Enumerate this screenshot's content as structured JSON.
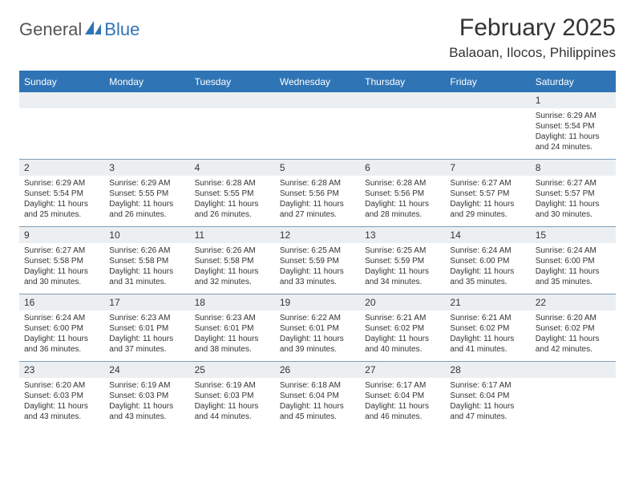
{
  "logo": {
    "text1": "General",
    "text2": "Blue",
    "icon_color": "#2f74b5"
  },
  "title": "February 2025",
  "location": "Balaoan, Ilocos, Philippines",
  "colors": {
    "header_bar": "#2f74b5",
    "header_text": "#ffffff",
    "daynum_bg": "#eceff1",
    "week_divider": "#7f9cb8",
    "body_text": "#333333",
    "background": "#ffffff"
  },
  "typography": {
    "title_fontsize": 30,
    "location_fontsize": 17,
    "dow_fontsize": 12,
    "daynum_fontsize": 12,
    "body_fontsize": 10
  },
  "day_names": [
    "Sunday",
    "Monday",
    "Tuesday",
    "Wednesday",
    "Thursday",
    "Friday",
    "Saturday"
  ],
  "weeks": [
    [
      null,
      null,
      null,
      null,
      null,
      null,
      {
        "n": "1",
        "sunrise": "6:29 AM",
        "sunset": "5:54 PM",
        "daylight": "11 hours and 24 minutes."
      }
    ],
    [
      {
        "n": "2",
        "sunrise": "6:29 AM",
        "sunset": "5:54 PM",
        "daylight": "11 hours and 25 minutes."
      },
      {
        "n": "3",
        "sunrise": "6:29 AM",
        "sunset": "5:55 PM",
        "daylight": "11 hours and 26 minutes."
      },
      {
        "n": "4",
        "sunrise": "6:28 AM",
        "sunset": "5:55 PM",
        "daylight": "11 hours and 26 minutes."
      },
      {
        "n": "5",
        "sunrise": "6:28 AM",
        "sunset": "5:56 PM",
        "daylight": "11 hours and 27 minutes."
      },
      {
        "n": "6",
        "sunrise": "6:28 AM",
        "sunset": "5:56 PM",
        "daylight": "11 hours and 28 minutes."
      },
      {
        "n": "7",
        "sunrise": "6:27 AM",
        "sunset": "5:57 PM",
        "daylight": "11 hours and 29 minutes."
      },
      {
        "n": "8",
        "sunrise": "6:27 AM",
        "sunset": "5:57 PM",
        "daylight": "11 hours and 30 minutes."
      }
    ],
    [
      {
        "n": "9",
        "sunrise": "6:27 AM",
        "sunset": "5:58 PM",
        "daylight": "11 hours and 30 minutes."
      },
      {
        "n": "10",
        "sunrise": "6:26 AM",
        "sunset": "5:58 PM",
        "daylight": "11 hours and 31 minutes."
      },
      {
        "n": "11",
        "sunrise": "6:26 AM",
        "sunset": "5:58 PM",
        "daylight": "11 hours and 32 minutes."
      },
      {
        "n": "12",
        "sunrise": "6:25 AM",
        "sunset": "5:59 PM",
        "daylight": "11 hours and 33 minutes."
      },
      {
        "n": "13",
        "sunrise": "6:25 AM",
        "sunset": "5:59 PM",
        "daylight": "11 hours and 34 minutes."
      },
      {
        "n": "14",
        "sunrise": "6:24 AM",
        "sunset": "6:00 PM",
        "daylight": "11 hours and 35 minutes."
      },
      {
        "n": "15",
        "sunrise": "6:24 AM",
        "sunset": "6:00 PM",
        "daylight": "11 hours and 35 minutes."
      }
    ],
    [
      {
        "n": "16",
        "sunrise": "6:24 AM",
        "sunset": "6:00 PM",
        "daylight": "11 hours and 36 minutes."
      },
      {
        "n": "17",
        "sunrise": "6:23 AM",
        "sunset": "6:01 PM",
        "daylight": "11 hours and 37 minutes."
      },
      {
        "n": "18",
        "sunrise": "6:23 AM",
        "sunset": "6:01 PM",
        "daylight": "11 hours and 38 minutes."
      },
      {
        "n": "19",
        "sunrise": "6:22 AM",
        "sunset": "6:01 PM",
        "daylight": "11 hours and 39 minutes."
      },
      {
        "n": "20",
        "sunrise": "6:21 AM",
        "sunset": "6:02 PM",
        "daylight": "11 hours and 40 minutes."
      },
      {
        "n": "21",
        "sunrise": "6:21 AM",
        "sunset": "6:02 PM",
        "daylight": "11 hours and 41 minutes."
      },
      {
        "n": "22",
        "sunrise": "6:20 AM",
        "sunset": "6:02 PM",
        "daylight": "11 hours and 42 minutes."
      }
    ],
    [
      {
        "n": "23",
        "sunrise": "6:20 AM",
        "sunset": "6:03 PM",
        "daylight": "11 hours and 43 minutes."
      },
      {
        "n": "24",
        "sunrise": "6:19 AM",
        "sunset": "6:03 PM",
        "daylight": "11 hours and 43 minutes."
      },
      {
        "n": "25",
        "sunrise": "6:19 AM",
        "sunset": "6:03 PM",
        "daylight": "11 hours and 44 minutes."
      },
      {
        "n": "26",
        "sunrise": "6:18 AM",
        "sunset": "6:04 PM",
        "daylight": "11 hours and 45 minutes."
      },
      {
        "n": "27",
        "sunrise": "6:17 AM",
        "sunset": "6:04 PM",
        "daylight": "11 hours and 46 minutes."
      },
      {
        "n": "28",
        "sunrise": "6:17 AM",
        "sunset": "6:04 PM",
        "daylight": "11 hours and 47 minutes."
      },
      null
    ]
  ]
}
